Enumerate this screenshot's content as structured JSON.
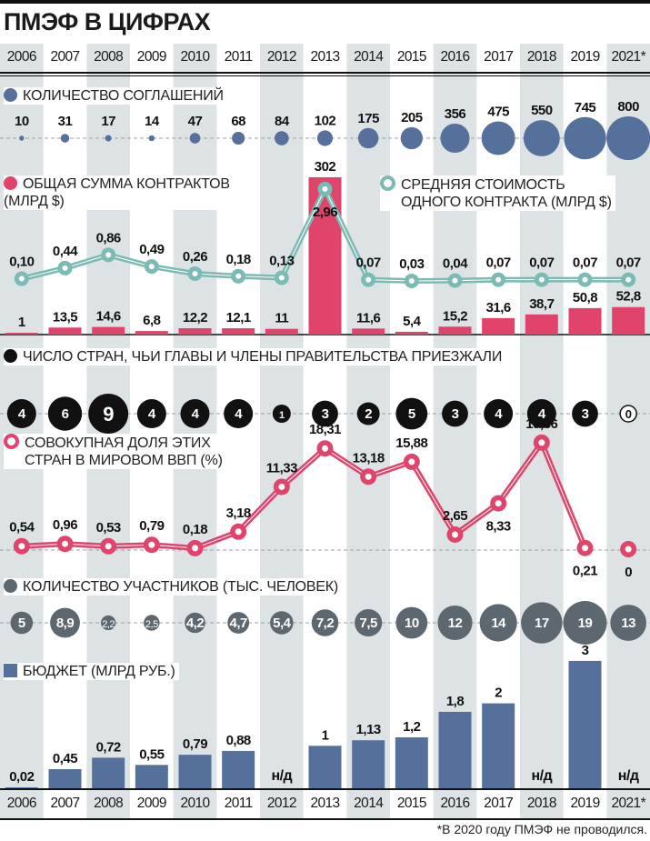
{
  "title": "ПМЭФ В ЦИФРАХ",
  "footnote": "*В 2020 году ПМЭФ не проводился.",
  "colors": {
    "stripe": "#dde2e4",
    "agreements": "#55709a",
    "contracts": "#e0446b",
    "avg_cost": "#7bbab5",
    "countries": "#111111",
    "gdp": "#e0446b",
    "participants": "#5c6770",
    "budget": "#55709a"
  },
  "chart_data": [
    {
      "type": "scatter",
      "title": "КОЛИЧЕСТВО СОГЛАШЕНИЙ",
      "categories": [
        "2006",
        "2007",
        "2008",
        "2009",
        "2010",
        "2011",
        "2012",
        "2013",
        "2014",
        "2015",
        "2016",
        "2017",
        "2018",
        "2019",
        "2021*"
      ],
      "values": [
        10,
        31,
        17,
        14,
        47,
        68,
        84,
        102,
        175,
        205,
        356,
        475,
        550,
        745,
        800
      ],
      "labels": [
        "10",
        "31",
        "17",
        "14",
        "47",
        "68",
        "84",
        "102",
        "175",
        "205",
        "356",
        "475",
        "550",
        "745",
        "800"
      ]
    },
    {
      "type": "bar",
      "title": "ОБЩАЯ СУММА КОНТРАКТОВ (МЛРД $)",
      "title_lines": [
        "ОБЩАЯ СУММА КОНТРАКТОВ",
        "(МЛРД $)"
      ],
      "values": [
        1,
        13.5,
        14.6,
        6.8,
        12.2,
        12.1,
        11,
        302,
        11.6,
        5.4,
        15.2,
        31.6,
        38.7,
        50.8,
        52.8
      ],
      "labels": [
        "1",
        "13,5",
        "14,6",
        "6,8",
        "12,2",
        "12,1",
        "11",
        "302",
        "11,6",
        "5,4",
        "15,2",
        "31,6",
        "38,7",
        "50,8",
        "52,8"
      ]
    },
    {
      "type": "line",
      "title": "СРЕДНЯЯ СТОИМОСТЬ ОДНОГО КОНТРАКТА (МЛРД $)",
      "title_lines": [
        "СРЕДНЯЯ СТОИМОСТЬ",
        "ОДНОГО КОНТРАКТА (МЛРД $)"
      ],
      "values": [
        0.1,
        0.44,
        0.86,
        0.49,
        0.26,
        0.18,
        0.13,
        2.96,
        0.07,
        0.03,
        0.04,
        0.07,
        0.07,
        0.07,
        0.07
      ],
      "labels": [
        "0,10",
        "0,44",
        "0,86",
        "0,49",
        "0,26",
        "0,18",
        "0,13",
        "2,96",
        "0,07",
        "0,03",
        "0,04",
        "0,07",
        "0,07",
        "0,07",
        "0,07"
      ]
    },
    {
      "type": "scatter",
      "title": "ЧИСЛО СТРАН, ЧЬИ ГЛАВЫ И ЧЛЕНЫ ПРАВИТЕЛЬСТВА ПРИЕЗЖАЛИ",
      "values": [
        4,
        6,
        9,
        4,
        4,
        4,
        1,
        3,
        2,
        5,
        3,
        4,
        4,
        3,
        0
      ],
      "labels": [
        "4",
        "6",
        "9",
        "4",
        "4",
        "4",
        "1",
        "3",
        "2",
        "5",
        "3",
        "4",
        "4",
        "3",
        "0"
      ]
    },
    {
      "type": "line",
      "title": "СОВОКУПНАЯ ДОЛЯ ЭТИХ СТРАН В МИРОВОМ ВВП (%)",
      "title_lines": [
        "СОВОКУПНАЯ ДОЛЯ ЭТИХ",
        "СТРАН В МИРОВОМ ВВП (%)"
      ],
      "values": [
        0.54,
        0.96,
        0.53,
        0.79,
        0.18,
        3.18,
        11.33,
        18.31,
        13.18,
        15.88,
        2.65,
        8.33,
        19.36,
        0.21,
        0
      ],
      "labels": [
        "0,54",
        "0,96",
        "0,53",
        "0,79",
        "0,18",
        "3,18",
        "11,33",
        "18,31",
        "13,18",
        "15,88",
        "2,65",
        "8,33",
        "19,36",
        "0,21",
        "0"
      ]
    },
    {
      "type": "scatter",
      "title": "КОЛИЧЕСТВО УЧАСТНИКОВ (ТЫС. ЧЕЛОВЕК)",
      "values": [
        5,
        8.9,
        2.2,
        2.5,
        4.2,
        4.7,
        5.4,
        7.2,
        7.5,
        10,
        12,
        14,
        17,
        19,
        13
      ],
      "labels": [
        "5",
        "8,9",
        "2,2",
        "2,5",
        "4,2",
        "4,7",
        "5,4",
        "7,2",
        "7,5",
        "10",
        "12",
        "14",
        "17",
        "19",
        "13"
      ]
    },
    {
      "type": "bar",
      "title": "БЮДЖЕТ (МЛРД РУБ.)",
      "values": [
        0.02,
        0.45,
        0.72,
        0.55,
        0.79,
        0.88,
        null,
        1,
        1.13,
        1.2,
        1.8,
        2,
        null,
        3,
        null
      ],
      "labels": [
        "0,02",
        "0,45",
        "0,72",
        "0,55",
        "0,79",
        "0,88",
        "н/д",
        "1",
        "1,13",
        "1,2",
        "1,8",
        "2",
        "н/д",
        "3",
        "н/д"
      ]
    }
  ]
}
